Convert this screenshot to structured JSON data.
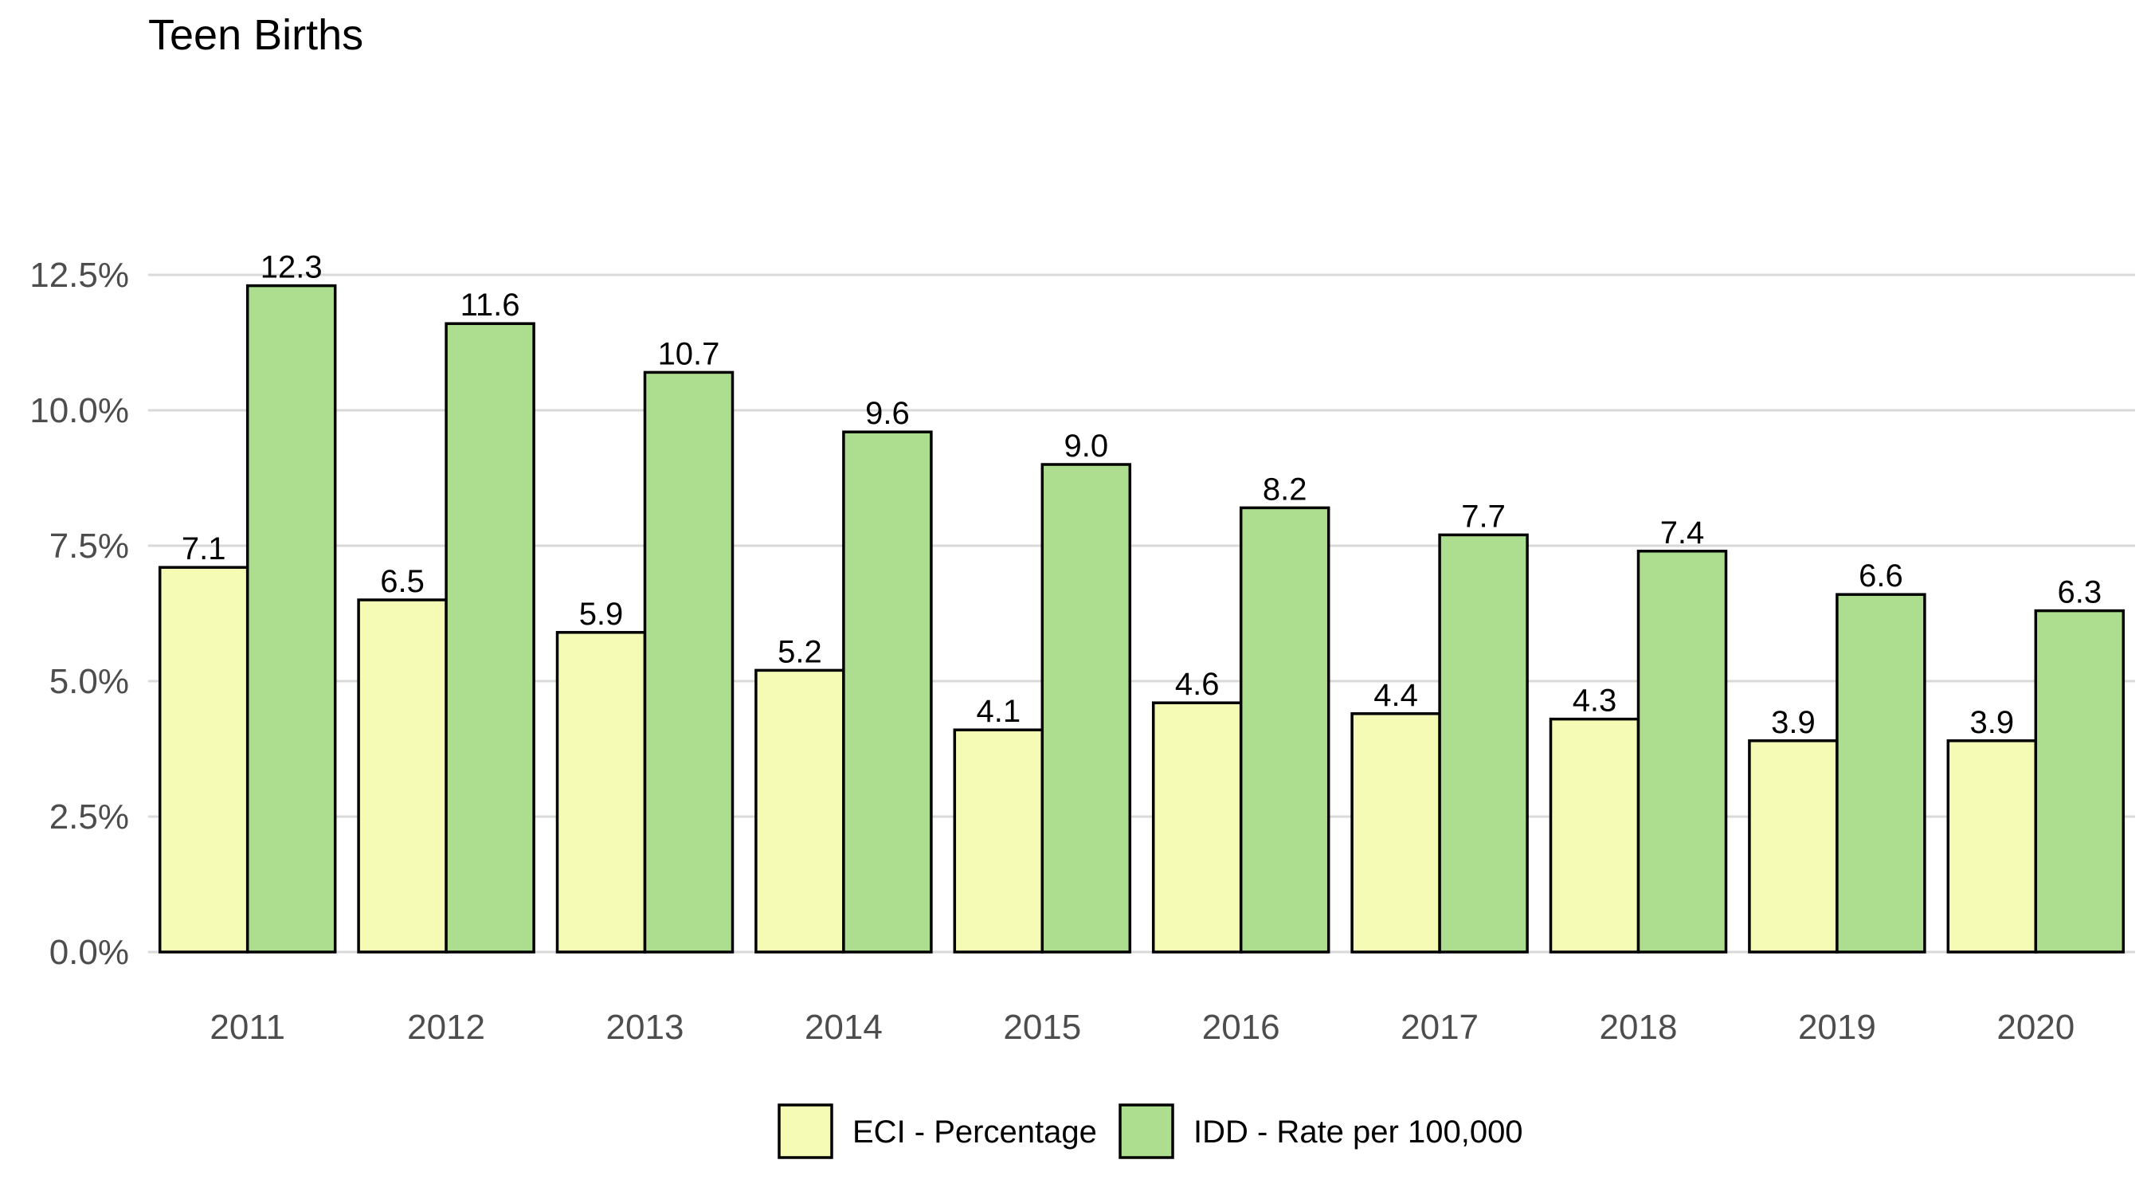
{
  "chart_data": {
    "type": "bar",
    "title": "Teen Births",
    "xlabel": "",
    "ylabel": "",
    "categories": [
      "2011",
      "2012",
      "2013",
      "2014",
      "2015",
      "2016",
      "2017",
      "2018",
      "2019",
      "2020"
    ],
    "series": [
      {
        "name": "ECI - Percentage",
        "color": "#f5fab5",
        "values": [
          7.1,
          6.5,
          5.9,
          5.2,
          4.1,
          4.6,
          4.4,
          4.3,
          3.9,
          3.9
        ],
        "labels": [
          "7.1",
          "6.5",
          "5.9",
          "5.2",
          "4.1",
          "4.6",
          "4.4",
          "4.3",
          "3.9",
          "3.9"
        ]
      },
      {
        "name": "IDD - Rate per 100,000",
        "color": "#addd8e",
        "values": [
          12.3,
          11.6,
          10.7,
          9.6,
          9.0,
          8.2,
          7.7,
          7.4,
          6.6,
          6.3
        ],
        "labels": [
          "12.3",
          "11.6",
          "10.7",
          "9.6",
          "9.0",
          "8.2",
          "7.7",
          "7.4",
          "6.6",
          "6.3"
        ]
      }
    ],
    "ylim": [
      0,
      12.5
    ],
    "yticks": [
      0,
      2.5,
      5,
      7.5,
      10,
      12.5
    ],
    "ytick_labels": [
      "0.0%",
      "2.5%",
      "5.0%",
      "7.5%",
      "10.0%",
      "12.5%"
    ],
    "grid": true,
    "legend_position": "bottom"
  }
}
